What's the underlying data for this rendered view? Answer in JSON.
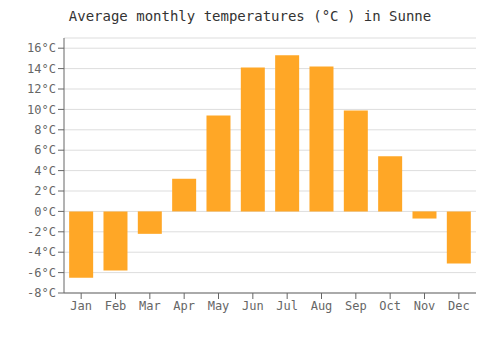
{
  "chart_data": {
    "type": "bar",
    "title": "Average monthly temperatures (°C ) in Sunne",
    "categories": [
      "Jan",
      "Feb",
      "Mar",
      "Apr",
      "May",
      "Jun",
      "Jul",
      "Aug",
      "Sep",
      "Oct",
      "Nov",
      "Dec"
    ],
    "values": [
      -6.5,
      -5.8,
      -2.2,
      3.2,
      9.4,
      14.1,
      15.3,
      14.2,
      9.9,
      5.4,
      -0.7,
      -5.1
    ],
    "color": "#FFA726",
    "ylim": [
      -8,
      17
    ],
    "yticks": [
      {
        "value": -8,
        "label": "-8°C"
      },
      {
        "value": -6,
        "label": "-6°C"
      },
      {
        "value": -4,
        "label": "-4°C"
      },
      {
        "value": -2,
        "label": "-2°C"
      },
      {
        "value": 0,
        "label": "0°C"
      },
      {
        "value": 2,
        "label": "2°C"
      },
      {
        "value": 4,
        "label": "4°C"
      },
      {
        "value": 6,
        "label": "6°C"
      },
      {
        "value": 8,
        "label": "8°C"
      },
      {
        "value": 10,
        "label": "10°C"
      },
      {
        "value": 12,
        "label": "12°C"
      },
      {
        "value": 14,
        "label": "14°C"
      },
      {
        "value": 16,
        "label": "16°C"
      }
    ],
    "grid": true
  }
}
